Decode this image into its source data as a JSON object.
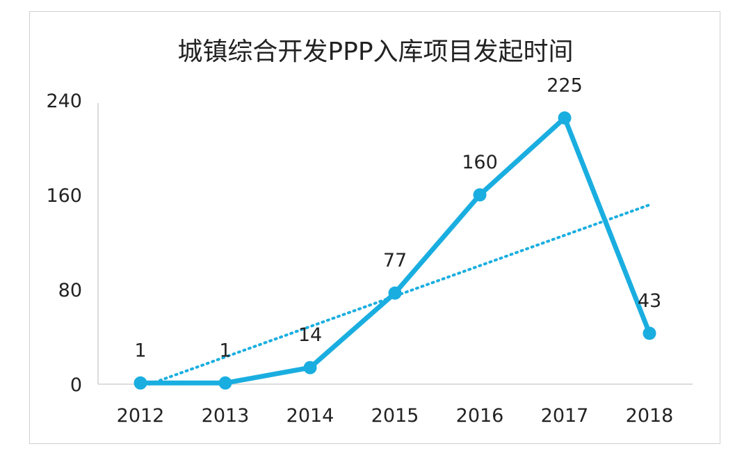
{
  "chart_data": {
    "type": "line",
    "title": "城镇综合开发PPP入库项目发起时间",
    "categories": [
      "2012",
      "2013",
      "2014",
      "2015",
      "2016",
      "2017",
      "2018"
    ],
    "values": [
      1,
      1,
      14,
      77,
      160,
      225,
      43
    ],
    "yticks": [
      0,
      80,
      160,
      240
    ],
    "ylim": [
      0,
      240
    ],
    "grid": false,
    "legend": "none",
    "trendline": {
      "type": "linear",
      "style": "dotted"
    },
    "colors": {
      "series": "#1aaee0",
      "axis": "#d0d0d0",
      "text": "#222222"
    }
  }
}
